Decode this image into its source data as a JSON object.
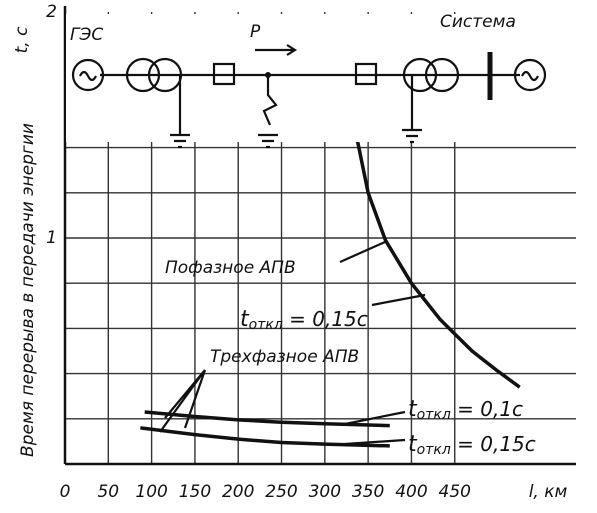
{
  "chart_data": {
    "type": "line",
    "y_label": "Время перерыва в передачи энергии",
    "y_unit": "t, c",
    "x_label": "l, км",
    "schematic": {
      "source": "ГЭС",
      "system": "Система",
      "power": "P"
    },
    "xlim": [
      0,
      590
    ],
    "ylim": [
      0,
      2
    ],
    "xticks": [
      0,
      50,
      100,
      150,
      200,
      250,
      300,
      350,
      400,
      450
    ],
    "yticks": [
      1,
      2
    ],
    "ygrid": [
      0.2,
      0.4,
      0.6,
      0.8,
      1,
      1.2,
      1.4,
      1.6,
      1.8
    ],
    "grid": true,
    "series": [
      {
        "color": "#111",
        "x": [
          335,
          350,
          370,
          400,
          433,
          470,
          500,
          525
        ],
        "values": [
          1.48,
          1.2,
          0.99,
          0.8,
          0.64,
          0.5,
          0.41,
          0.34
        ]
      },
      {
        "color": "#111",
        "x": [
          92,
          150,
          200,
          250,
          300,
          375
        ],
        "values": [
          0.23,
          0.21,
          0.195,
          0.185,
          0.178,
          0.17
        ]
      },
      {
        "color": "#111",
        "x": [
          87,
          150,
          200,
          250,
          300,
          375
        ],
        "values": [
          0.16,
          0.13,
          0.11,
          0.095,
          0.088,
          0.08
        ]
      }
    ],
    "annotations": [
      {
        "text": "Пофазное АПВ"
      },
      {
        "main": "t",
        "sub": "откл",
        "rest": " = 0,15с"
      },
      {
        "text": "Трехфазное АПВ"
      },
      {
        "main": "t",
        "sub": "откл",
        "rest": " = 0,1с"
      },
      {
        "main": "t",
        "sub": "откл",
        "rest": " = 0,15с"
      }
    ]
  }
}
